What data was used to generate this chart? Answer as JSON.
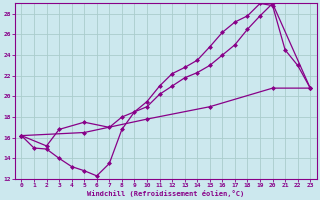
{
  "xlabel": "Windchill (Refroidissement éolien,°C)",
  "bg_color": "#cce8ee",
  "grid_color": "#aacccc",
  "line_color": "#880088",
  "xlim": [
    -0.5,
    23.5
  ],
  "ylim": [
    12,
    29
  ],
  "xticks": [
    0,
    1,
    2,
    3,
    4,
    5,
    6,
    7,
    8,
    9,
    10,
    11,
    12,
    13,
    14,
    15,
    16,
    17,
    18,
    19,
    20,
    21,
    22,
    23
  ],
  "yticks": [
    12,
    14,
    16,
    18,
    20,
    22,
    24,
    26,
    28
  ],
  "line1_x": [
    0,
    1,
    2,
    3,
    4,
    5,
    6,
    7,
    8,
    9,
    10,
    11,
    12,
    13,
    14,
    15,
    16,
    17,
    18,
    19,
    20,
    21,
    22,
    23
  ],
  "line1_y": [
    16.2,
    15.0,
    14.9,
    14.0,
    13.2,
    12.8,
    12.3,
    13.5,
    16.8,
    18.5,
    19.5,
    21.0,
    22.2,
    22.8,
    23.5,
    24.8,
    26.2,
    27.2,
    27.8,
    29.0,
    28.8,
    24.5,
    23.0,
    20.8
  ],
  "line2_x": [
    0,
    2,
    3,
    5,
    7,
    8,
    10,
    11,
    12,
    13,
    14,
    15,
    16,
    17,
    18,
    19,
    20,
    23
  ],
  "line2_y": [
    16.2,
    15.2,
    16.8,
    17.5,
    17.0,
    18.0,
    19.0,
    20.2,
    21.0,
    21.8,
    22.3,
    23.0,
    24.0,
    25.0,
    26.5,
    27.8,
    29.0,
    20.8
  ],
  "line3_x": [
    0,
    5,
    10,
    15,
    20,
    23
  ],
  "line3_y": [
    16.2,
    16.5,
    17.8,
    19.0,
    20.8,
    20.8
  ]
}
